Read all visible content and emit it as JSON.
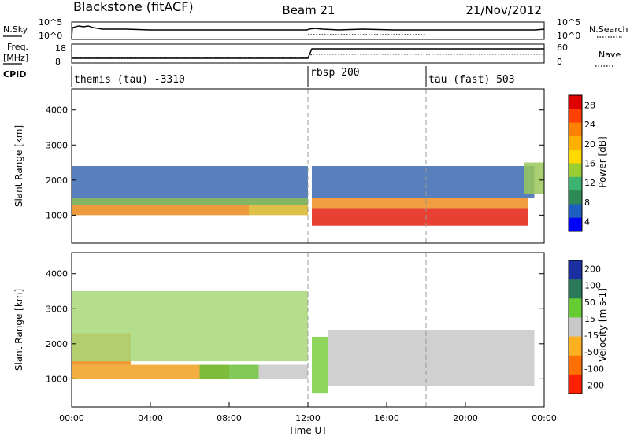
{
  "header": {
    "station": "Blackstone (fitACF)",
    "beam": "Beam 21",
    "date": "21/Nov/2012"
  },
  "top_panels": {
    "nsky_label": "N.Sky",
    "nsky_ticks": [
      "10^5",
      "10^0"
    ],
    "nsearch_label": "N.Search",
    "nsearch_ticks": [
      "10^5",
      "10^0"
    ],
    "freq_label": "Freq.",
    "freq_unit": "[MHz]",
    "freq_ticks": [
      "18",
      "8"
    ],
    "nave_label": "Nave",
    "nave_ticks": [
      "60",
      "0"
    ],
    "cpid_label": "CPID",
    "cpid_segments": [
      {
        "label": "themis (tau) -3310",
        "start_hour": 0
      },
      {
        "label": "rbsp 200",
        "start_hour": 12
      },
      {
        "label": "tau (fast) 503",
        "start_hour": 18
      }
    ],
    "freq_series": [
      {
        "hour": 0,
        "mhz": 10.5
      },
      {
        "hour": 12,
        "mhz": 10.5
      },
      {
        "hour": 12.2,
        "mhz": 15.5
      },
      {
        "hour": 24,
        "mhz": 15.5
      }
    ],
    "nave_series": [
      {
        "hour": 0,
        "value": 18
      },
      {
        "hour": 12,
        "value": 18
      },
      {
        "hour": 12.2,
        "value": 28
      },
      {
        "hour": 24,
        "value": 28
      }
    ]
  },
  "chart_data": [
    {
      "type": "heatmap",
      "panel": "power",
      "ylabel": "Slant Range [km]",
      "yticks": [
        "4000",
        "3000",
        "2000",
        "1000"
      ],
      "ylim": [
        200,
        4600
      ],
      "xlim": [
        0,
        24
      ],
      "colorbar_label": "Power [dB]",
      "colorbar_ticks": [
        "28",
        "24",
        "20",
        "16",
        "12",
        "8",
        "4"
      ],
      "colorbar_colors": [
        "#e00000",
        "#ff4000",
        "#ff8000",
        "#ffb000",
        "#ffd800",
        "#9acd32",
        "#3cb371",
        "#2e8b57",
        "#1f5fbf",
        "#0000ff"
      ],
      "bands": [
        {
          "x0": 0,
          "x1": 9,
          "r0": 1000,
          "r1": 1300,
          "color": "#e98a1a"
        },
        {
          "x0": 9,
          "x1": 12,
          "r0": 1000,
          "r1": 1300,
          "color": "#d8b428"
        },
        {
          "x0": 0,
          "x1": 12,
          "r0": 1300,
          "r1": 1500,
          "color": "#6fa84a"
        },
        {
          "x0": 0,
          "x1": 12,
          "r0": 1500,
          "r1": 2400,
          "color": "#3a6ab0"
        },
        {
          "x0": 12.2,
          "x1": 23.2,
          "r0": 700,
          "r1": 1200,
          "color": "#e42010"
        },
        {
          "x0": 12.2,
          "x1": 23.2,
          "r0": 1200,
          "r1": 1500,
          "color": "#ef8c20"
        },
        {
          "x0": 12.2,
          "x1": 23.5,
          "r0": 1500,
          "r1": 2400,
          "color": "#3a6ab0"
        },
        {
          "x0": 23,
          "x1": 24,
          "r0": 1600,
          "r1": 2500,
          "color": "#9bc85a"
        }
      ]
    },
    {
      "type": "heatmap",
      "panel": "velocity",
      "ylabel": "Slant Range [km]",
      "yticks": [
        "4000",
        "3000",
        "2000",
        "1000"
      ],
      "ylim": [
        200,
        4600
      ],
      "xlim": [
        0,
        24
      ],
      "xlabel": "Time UT",
      "xticks": [
        "00:00",
        "04:00",
        "08:00",
        "12:00",
        "16:00",
        "20:00",
        "00:00"
      ],
      "colorbar_label": "Velocity [m s-1]",
      "colorbar_ticks": [
        "200",
        "100",
        "50",
        "15",
        "-15",
        "-50",
        "-100",
        "-200"
      ],
      "colorbar_colors": [
        "#1c2fa0",
        "#2a7a5a",
        "#66cc33",
        "#c8c8c8",
        "#ffb020",
        "#ff7000",
        "#ff2000"
      ],
      "bands": [
        {
          "x0": 0,
          "x1": 8,
          "r0": 1000,
          "r1": 1400,
          "color": "#f0a020"
        },
        {
          "x0": 0,
          "x1": 3,
          "r0": 1400,
          "r1": 2300,
          "color": "#f08a10"
        },
        {
          "x0": 6.5,
          "x1": 9.5,
          "r0": 1000,
          "r1": 1400,
          "color": "#6abf3a"
        },
        {
          "x0": 9.5,
          "x1": 12,
          "r0": 1000,
          "r1": 1400,
          "color": "#c8c8c8"
        },
        {
          "x0": 12.2,
          "x1": 13,
          "r0": 600,
          "r1": 2200,
          "color": "#7ad040"
        },
        {
          "x0": 13,
          "x1": 23.5,
          "r0": 800,
          "r1": 2400,
          "color": "#c8c8c8"
        },
        {
          "x0": 0,
          "x1": 12,
          "r0": 1500,
          "r1": 3500,
          "color": "#a8d878"
        }
      ]
    }
  ]
}
